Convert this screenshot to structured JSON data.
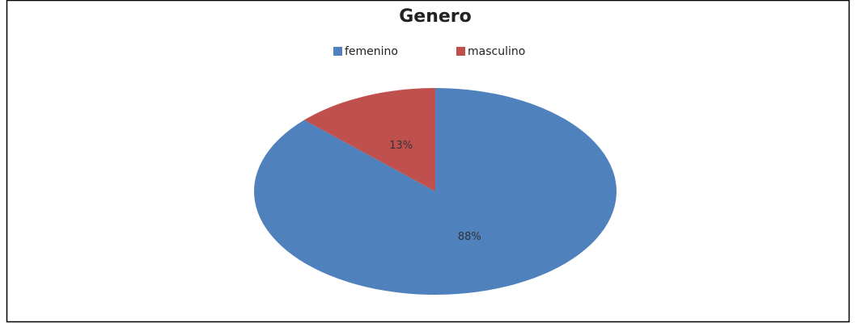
{
  "chart_data": {
    "type": "pie",
    "title": "Genero",
    "categories": [
      "femenino",
      "masculino"
    ],
    "values": [
      88,
      13
    ],
    "value_labels": [
      "88%",
      "13%"
    ],
    "colors": [
      "#4f81bd",
      "#c0504d"
    ],
    "legend": "top"
  }
}
